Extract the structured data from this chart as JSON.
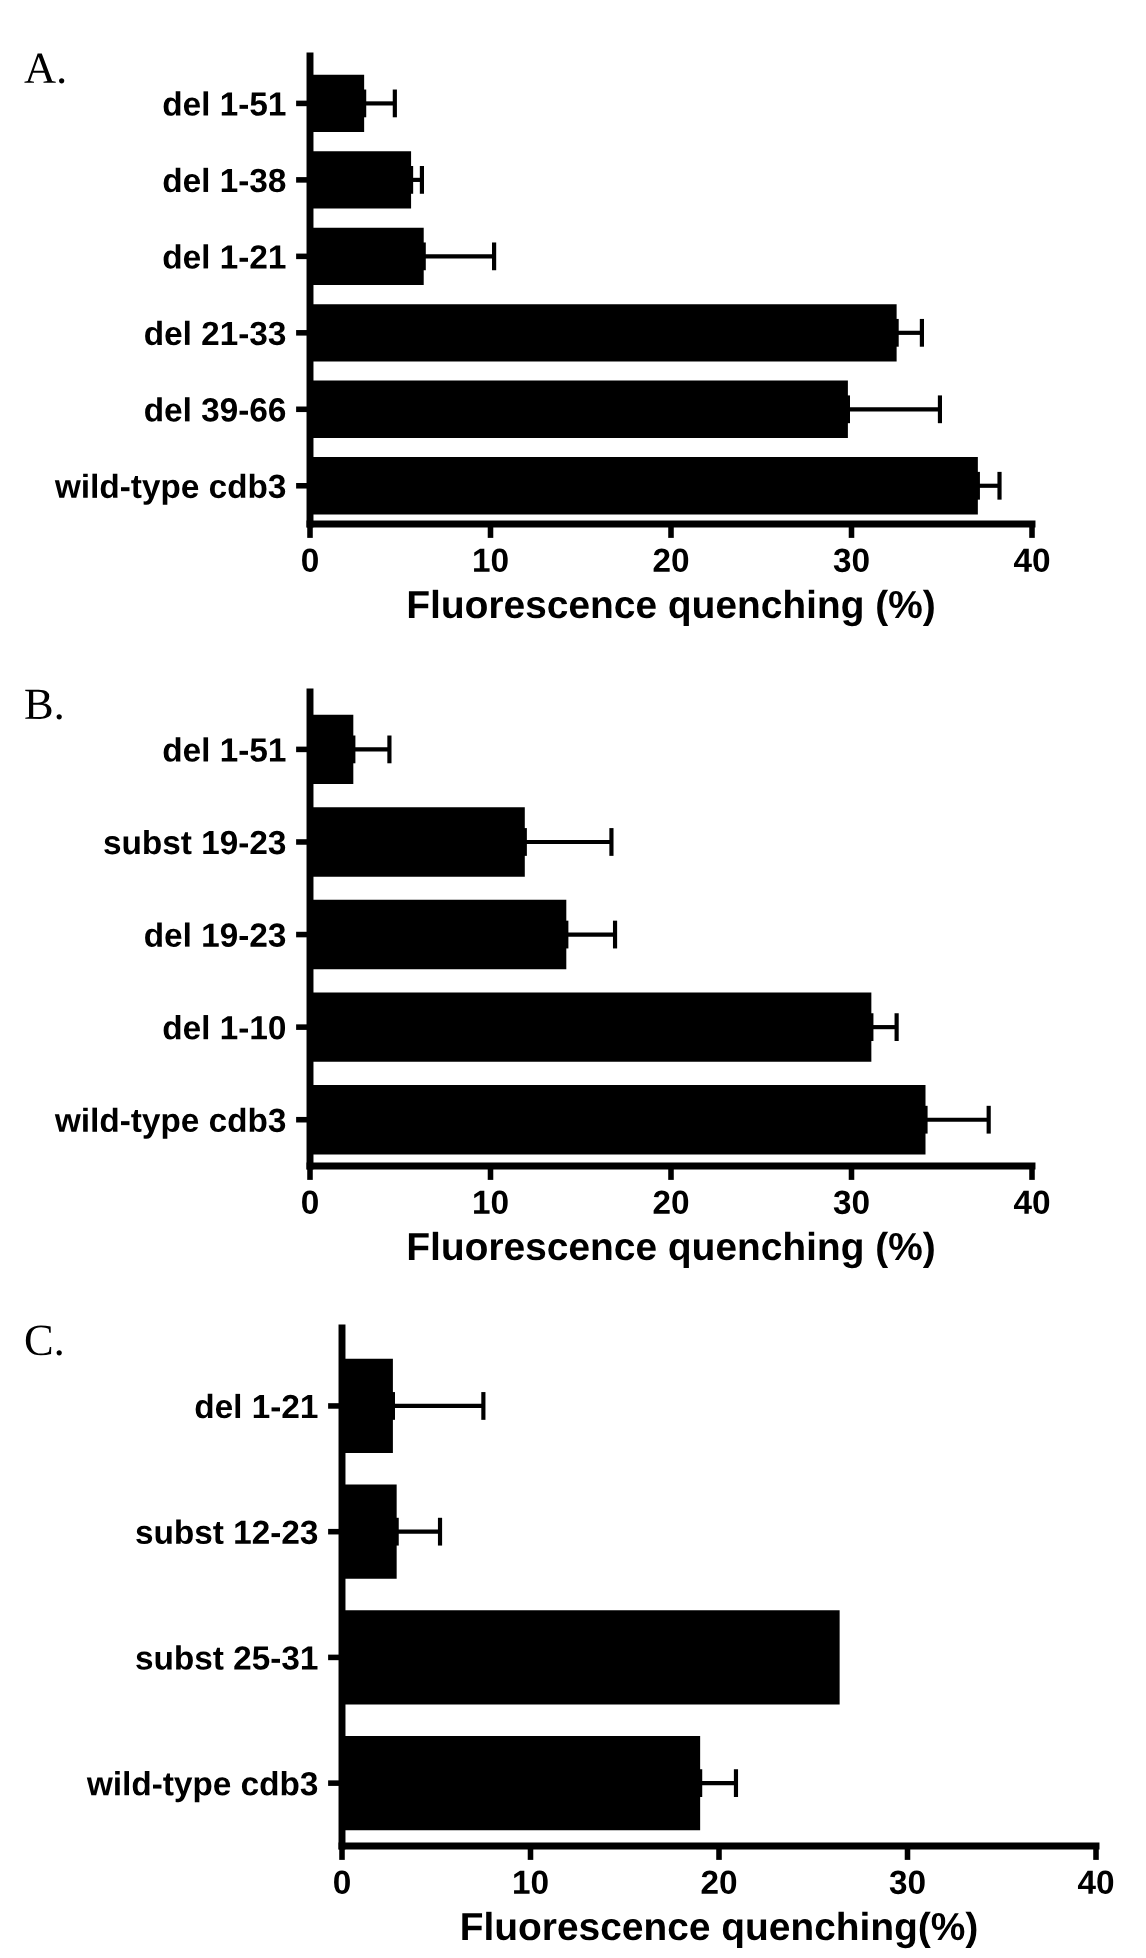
{
  "chart_data": [
    {
      "type": "bar",
      "orientation": "horizontal",
      "title": "A.",
      "xlabel": "Fluorescence quenching (%)",
      "categories": [
        "del 1-51",
        "del 1-38",
        "del 1-21",
        "del 21-33",
        "del 39-66",
        "wild-type cdb3"
      ],
      "values": [
        3.0,
        5.6,
        6.3,
        32.5,
        29.8,
        37.0
      ],
      "errors": [
        [
          3.0,
          4.7
        ],
        [
          5.6,
          6.2
        ],
        [
          6.3,
          10.2
        ],
        [
          32.5,
          33.9
        ],
        [
          29.8,
          34.9
        ],
        [
          37.0,
          38.2
        ]
      ],
      "color": "#000000",
      "xlim": [
        0,
        40
      ],
      "xticks": [
        0,
        10,
        20,
        30,
        40
      ],
      "grid": false,
      "legend": false
    },
    {
      "type": "bar",
      "orientation": "horizontal",
      "title": "B.",
      "xlabel": "Fluorescence quenching (%)",
      "categories": [
        "del 1-51",
        "subst 19-23",
        "del 19-23",
        "del 1-10",
        "wild-type cdb3"
      ],
      "values": [
        2.4,
        11.9,
        14.2,
        31.1,
        34.1
      ],
      "errors": [
        [
          2.4,
          4.4
        ],
        [
          11.9,
          16.7
        ],
        [
          14.2,
          16.9
        ],
        [
          31.1,
          32.5
        ],
        [
          34.1,
          37.6
        ]
      ],
      "color": "#000000",
      "xlim": [
        0,
        40
      ],
      "xticks": [
        0,
        10,
        20,
        30,
        40
      ],
      "grid": false,
      "legend": false
    },
    {
      "type": "bar",
      "orientation": "horizontal",
      "title": "C.",
      "xlabel": "Fluorescence quenching(%)",
      "categories": [
        "del 1-21",
        "subst 12-23",
        "subst 25-31",
        "wild-type cdb3"
      ],
      "values": [
        2.7,
        2.9,
        26.4,
        19.0
      ],
      "errors": [
        [
          2.7,
          7.5
        ],
        [
          2.9,
          5.2
        ],
        null,
        [
          19.0,
          20.9
        ]
      ],
      "color": "#000000",
      "xlim": [
        0,
        40
      ],
      "xticks": [
        0,
        10,
        20,
        30,
        40
      ],
      "grid": false,
      "legend": false
    }
  ]
}
